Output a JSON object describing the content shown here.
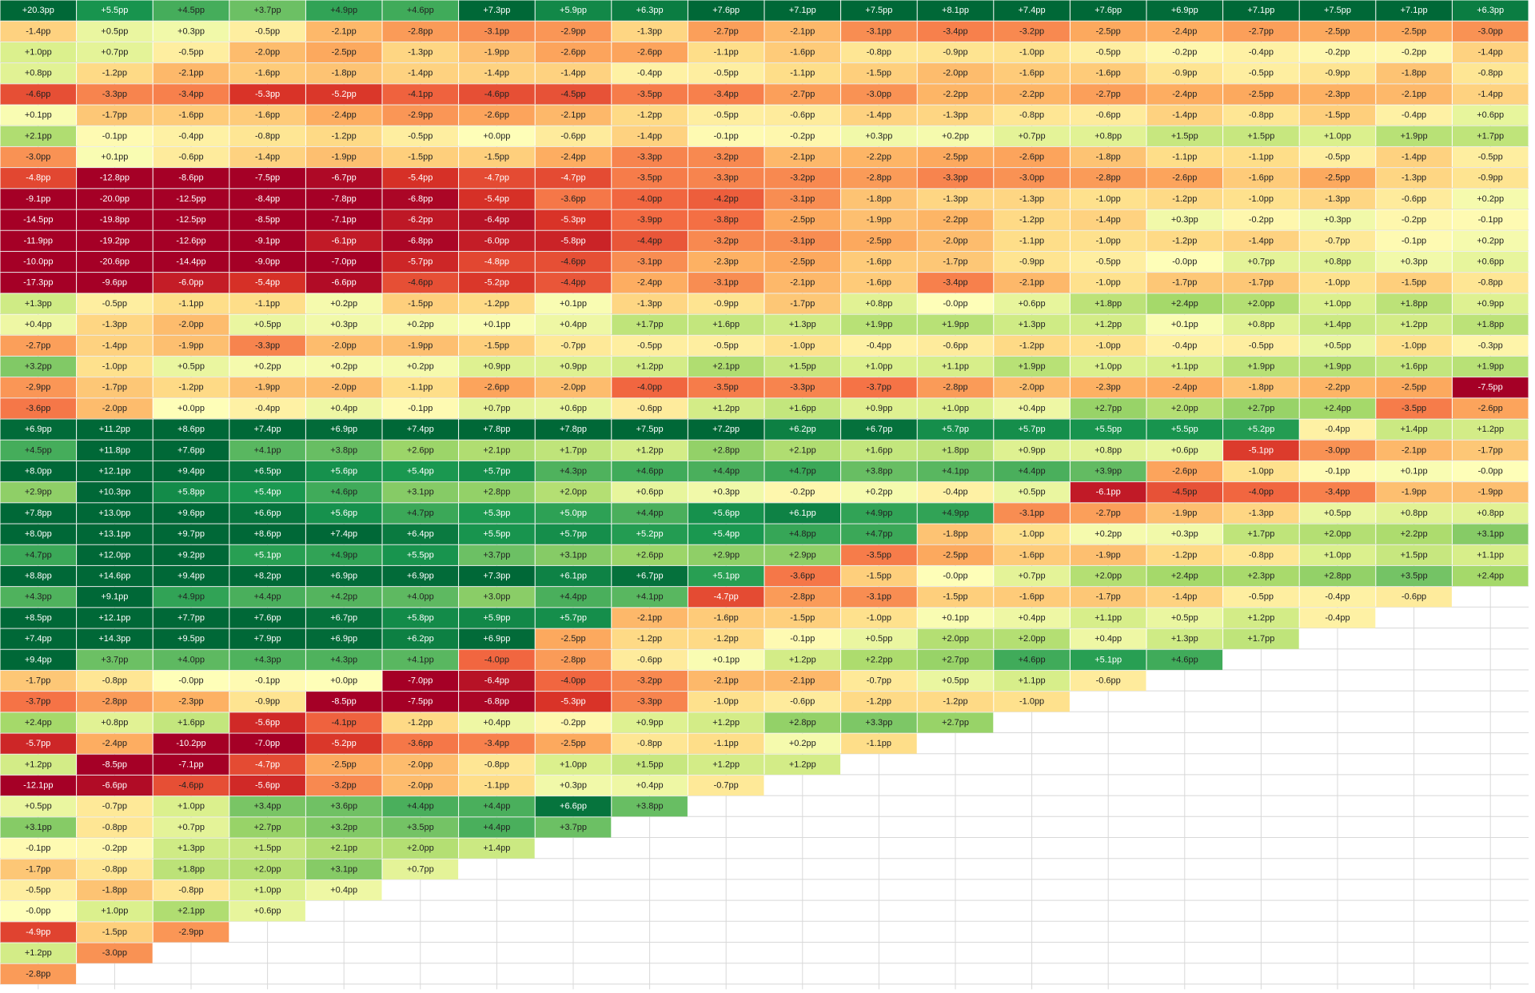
{
  "chart_data": {
    "type": "heatmap",
    "unit": "pp",
    "rows": [
      [
        "+20.3pp",
        "+5.5pp",
        "+4.5pp",
        "+3.7pp",
        "+4.9pp",
        "+4.6pp",
        "+7.3pp",
        "+5.9pp",
        "+6.3pp",
        "+7.6pp",
        "+7.1pp",
        "+7.5pp",
        "+8.1pp",
        "+7.4pp",
        "+7.6pp",
        "+6.9pp",
        "+7.1pp",
        "+7.5pp",
        "+7.1pp",
        "+6.3pp"
      ],
      [
        "-1.4pp",
        "+0.5pp",
        "+0.3pp",
        "-0.5pp",
        "-2.1pp",
        "-2.8pp",
        "-3.1pp",
        "-2.9pp",
        "-1.3pp",
        "-2.7pp",
        "-2.1pp",
        "-3.1pp",
        "-3.4pp",
        "-3.2pp",
        "-2.5pp",
        "-2.4pp",
        "-2.7pp",
        "-2.5pp",
        "-2.5pp",
        "-3.0pp"
      ],
      [
        "+1.0pp",
        "+0.7pp",
        "-0.5pp",
        "-2.0pp",
        "-2.5pp",
        "-1.3pp",
        "-1.9pp",
        "-2.6pp",
        "-2.6pp",
        "-1.1pp",
        "-1.6pp",
        "-0.8pp",
        "-0.9pp",
        "-1.0pp",
        "-0.5pp",
        "-0.2pp",
        "-0.4pp",
        "-0.2pp",
        "-0.2pp",
        "-1.4pp"
      ],
      [
        "+0.8pp",
        "-1.2pp",
        "-2.1pp",
        "-1.6pp",
        "-1.8pp",
        "-1.4pp",
        "-1.4pp",
        "-1.4pp",
        "-0.4pp",
        "-0.5pp",
        "-1.1pp",
        "-1.5pp",
        "-2.0pp",
        "-1.6pp",
        "-1.6pp",
        "-0.9pp",
        "-0.5pp",
        "-0.9pp",
        "-1.8pp",
        "-0.8pp"
      ],
      [
        "-4.6pp",
        "-3.3pp",
        "-3.4pp",
        "-5.3pp",
        "-5.2pp",
        "-4.1pp",
        "-4.6pp",
        "-4.5pp",
        "-3.5pp",
        "-3.4pp",
        "-2.7pp",
        "-3.0pp",
        "-2.2pp",
        "-2.2pp",
        "-2.7pp",
        "-2.4pp",
        "-2.5pp",
        "-2.3pp",
        "-2.1pp",
        "-1.4pp"
      ],
      [
        "+0.1pp",
        "-1.7pp",
        "-1.6pp",
        "-1.6pp",
        "-2.4pp",
        "-2.9pp",
        "-2.6pp",
        "-2.1pp",
        "-1.2pp",
        "-0.5pp",
        "-0.6pp",
        "-1.4pp",
        "-1.3pp",
        "-0.8pp",
        "-0.6pp",
        "-1.4pp",
        "-0.8pp",
        "-1.5pp",
        "-0.4pp",
        "+0.6pp"
      ],
      [
        "+2.1pp",
        "-0.1pp",
        "-0.4pp",
        "-0.8pp",
        "-1.2pp",
        "-0.5pp",
        "+0.0pp",
        "-0.6pp",
        "-1.4pp",
        "-0.1pp",
        "-0.2pp",
        "+0.3pp",
        "+0.2pp",
        "+0.7pp",
        "+0.8pp",
        "+1.5pp",
        "+1.5pp",
        "+1.0pp",
        "+1.9pp",
        "+1.7pp"
      ],
      [
        "-3.0pp",
        "+0.1pp",
        "-0.6pp",
        "-1.4pp",
        "-1.9pp",
        "-1.5pp",
        "-1.5pp",
        "-2.4pp",
        "-3.3pp",
        "-3.2pp",
        "-2.1pp",
        "-2.2pp",
        "-2.5pp",
        "-2.6pp",
        "-1.8pp",
        "-1.1pp",
        "-1.1pp",
        "-0.5pp",
        "-1.4pp",
        "-0.5pp"
      ],
      [
        "-4.8pp",
        "-12.8pp",
        "-8.6pp",
        "-7.5pp",
        "-6.7pp",
        "-5.4pp",
        "-4.7pp",
        "-4.7pp",
        "-3.5pp",
        "-3.3pp",
        "-3.2pp",
        "-2.8pp",
        "-3.3pp",
        "-3.0pp",
        "-2.8pp",
        "-2.6pp",
        "-1.6pp",
        "-2.5pp",
        "-1.3pp",
        "-0.9pp"
      ],
      [
        "-9.1pp",
        "-20.0pp",
        "-12.5pp",
        "-8.4pp",
        "-7.8pp",
        "-6.8pp",
        "-5.4pp",
        "-3.6pp",
        "-4.0pp",
        "-4.2pp",
        "-3.1pp",
        "-1.8pp",
        "-1.3pp",
        "-1.3pp",
        "-1.0pp",
        "-1.2pp",
        "-1.0pp",
        "-1.3pp",
        "-0.6pp",
        "+0.2pp"
      ],
      [
        "-14.5pp",
        "-19.8pp",
        "-12.5pp",
        "-8.5pp",
        "-7.1pp",
        "-6.2pp",
        "-6.4pp",
        "-5.3pp",
        "-3.9pp",
        "-3.8pp",
        "-2.5pp",
        "-1.9pp",
        "-2.2pp",
        "-1.2pp",
        "-1.4pp",
        "+0.3pp",
        "-0.2pp",
        "+0.3pp",
        "-0.2pp",
        "-0.1pp"
      ],
      [
        "-11.9pp",
        "-19.2pp",
        "-12.6pp",
        "-9.1pp",
        "-6.1pp",
        "-6.8pp",
        "-6.0pp",
        "-5.8pp",
        "-4.4pp",
        "-3.2pp",
        "-3.1pp",
        "-2.5pp",
        "-2.0pp",
        "-1.1pp",
        "-1.0pp",
        "-1.2pp",
        "-1.4pp",
        "-0.7pp",
        "-0.1pp",
        "+0.2pp"
      ],
      [
        "-10.0pp",
        "-20.6pp",
        "-14.4pp",
        "-9.0pp",
        "-7.0pp",
        "-5.7pp",
        "-4.8pp",
        "-4.6pp",
        "-3.1pp",
        "-2.3pp",
        "-2.5pp",
        "-1.6pp",
        "-1.7pp",
        "-0.9pp",
        "-0.5pp",
        "-0.0pp",
        "+0.7pp",
        "+0.8pp",
        "+0.3pp",
        "+0.6pp"
      ],
      [
        "-17.3pp",
        "-9.6pp",
        "-6.0pp",
        "-5.4pp",
        "-6.6pp",
        "-4.6pp",
        "-5.2pp",
        "-4.4pp",
        "-2.4pp",
        "-3.1pp",
        "-2.1pp",
        "-1.6pp",
        "-3.4pp",
        "-2.1pp",
        "-1.0pp",
        "-1.7pp",
        "-1.7pp",
        "-1.0pp",
        "-1.5pp",
        "-0.8pp"
      ],
      [
        "+1.3pp",
        "-0.5pp",
        "-1.1pp",
        "-1.1pp",
        "+0.2pp",
        "-1.5pp",
        "-1.2pp",
        "+0.1pp",
        "-1.3pp",
        "-0.9pp",
        "-1.7pp",
        "+0.8pp",
        "-0.0pp",
        "+0.6pp",
        "+1.8pp",
        "+2.4pp",
        "+2.0pp",
        "+1.0pp",
        "+1.8pp",
        "+0.9pp"
      ],
      [
        "+0.4pp",
        "-1.3pp",
        "-2.0pp",
        "+0.5pp",
        "+0.3pp",
        "+0.2pp",
        "+0.1pp",
        "+0.4pp",
        "+1.7pp",
        "+1.6pp",
        "+1.3pp",
        "+1.9pp",
        "+1.9pp",
        "+1.3pp",
        "+1.2pp",
        "+0.1pp",
        "+0.8pp",
        "+1.4pp",
        "+1.2pp",
        "+1.8pp"
      ],
      [
        "-2.7pp",
        "-1.4pp",
        "-1.9pp",
        "-3.3pp",
        "-2.0pp",
        "-1.9pp",
        "-1.5pp",
        "-0.7pp",
        "-0.5pp",
        "-0.5pp",
        "-1.0pp",
        "-0.4pp",
        "-0.6pp",
        "-1.2pp",
        "-1.0pp",
        "-0.4pp",
        "-0.5pp",
        "+0.5pp",
        "-1.0pp",
        "-0.3pp"
      ],
      [
        "+3.2pp",
        "-1.0pp",
        "+0.5pp",
        "+0.2pp",
        "+0.2pp",
        "+0.2pp",
        "+0.9pp",
        "+0.9pp",
        "+1.2pp",
        "+2.1pp",
        "+1.5pp",
        "+1.0pp",
        "+1.1pp",
        "+1.9pp",
        "+1.0pp",
        "+1.1pp",
        "+1.9pp",
        "+1.9pp",
        "+1.6pp",
        "+1.9pp"
      ],
      [
        "-2.9pp",
        "-1.7pp",
        "-1.2pp",
        "-1.9pp",
        "-2.0pp",
        "-1.1pp",
        "-2.6pp",
        "-2.0pp",
        "-4.0pp",
        "-3.5pp",
        "-3.3pp",
        "-3.7pp",
        "-2.8pp",
        "-2.0pp",
        "-2.3pp",
        "-2.4pp",
        "-1.8pp",
        "-2.2pp",
        "-2.5pp",
        "-7.5pp"
      ],
      [
        "-3.6pp",
        "-2.0pp",
        "+0.0pp",
        "-0.4pp",
        "+0.4pp",
        "-0.1pp",
        "+0.7pp",
        "+0.6pp",
        "-0.6pp",
        "+1.2pp",
        "+1.6pp",
        "+0.9pp",
        "+1.0pp",
        "+0.4pp",
        "+2.7pp",
        "+2.0pp",
        "+2.7pp",
        "+2.4pp",
        "-3.5pp",
        "-2.6pp"
      ],
      [
        "+6.9pp",
        "+11.2pp",
        "+8.6pp",
        "+7.4pp",
        "+6.9pp",
        "+7.4pp",
        "+7.8pp",
        "+7.8pp",
        "+7.5pp",
        "+7.2pp",
        "+6.2pp",
        "+6.7pp",
        "+5.7pp",
        "+5.7pp",
        "+5.5pp",
        "+5.5pp",
        "+5.2pp",
        "-0.4pp",
        "+1.4pp",
        "+1.2pp"
      ],
      [
        "+4.5pp",
        "+11.8pp",
        "+7.6pp",
        "+4.1pp",
        "+3.8pp",
        "+2.6pp",
        "+2.1pp",
        "+1.7pp",
        "+1.2pp",
        "+2.8pp",
        "+2.1pp",
        "+1.6pp",
        "+1.8pp",
        "+0.9pp",
        "+0.8pp",
        "+0.6pp",
        "-5.1pp",
        "-3.0pp",
        "-2.1pp",
        "-1.7pp"
      ],
      [
        "+8.0pp",
        "+12.1pp",
        "+9.4pp",
        "+6.5pp",
        "+5.6pp",
        "+5.4pp",
        "+5.7pp",
        "+4.3pp",
        "+4.6pp",
        "+4.4pp",
        "+4.7pp",
        "+3.8pp",
        "+4.1pp",
        "+4.4pp",
        "+3.9pp",
        "-2.6pp",
        "-1.0pp",
        "-0.1pp",
        "+0.1pp",
        "-0.0pp"
      ],
      [
        "+2.9pp",
        "+10.3pp",
        "+5.8pp",
        "+5.4pp",
        "+4.6pp",
        "+3.1pp",
        "+2.8pp",
        "+2.0pp",
        "+0.6pp",
        "+0.3pp",
        "-0.2pp",
        "+0.2pp",
        "-0.4pp",
        "+0.5pp",
        "-6.1pp",
        "-4.5pp",
        "-4.0pp",
        "-3.4pp",
        "-1.9pp",
        "-1.9pp"
      ],
      [
        "+7.8pp",
        "+13.0pp",
        "+9.6pp",
        "+6.6pp",
        "+5.6pp",
        "+4.7pp",
        "+5.3pp",
        "+5.0pp",
        "+4.4pp",
        "+5.6pp",
        "+6.1pp",
        "+4.9pp",
        "+4.9pp",
        "-3.1pp",
        "-2.7pp",
        "-1.9pp",
        "-1.3pp",
        "+0.5pp",
        "+0.8pp",
        "+0.8pp"
      ],
      [
        "+8.0pp",
        "+13.1pp",
        "+9.7pp",
        "+8.6pp",
        "+7.4pp",
        "+6.4pp",
        "+5.5pp",
        "+5.7pp",
        "+5.2pp",
        "+5.4pp",
        "+4.8pp",
        "+4.7pp",
        "-1.8pp",
        "-1.0pp",
        "+0.2pp",
        "+0.3pp",
        "+1.7pp",
        "+2.0pp",
        "+2.2pp",
        "+3.1pp"
      ],
      [
        "+4.7pp",
        "+12.0pp",
        "+9.2pp",
        "+5.1pp",
        "+4.9pp",
        "+5.5pp",
        "+3.7pp",
        "+3.1pp",
        "+2.6pp",
        "+2.9pp",
        "+2.9pp",
        "-3.5pp",
        "-2.5pp",
        "-1.6pp",
        "-1.9pp",
        "-1.2pp",
        "-0.8pp",
        "+1.0pp",
        "+1.5pp",
        "+1.1pp"
      ],
      [
        "+8.8pp",
        "+14.6pp",
        "+9.4pp",
        "+8.2pp",
        "+6.9pp",
        "+6.9pp",
        "+7.3pp",
        "+6.1pp",
        "+6.7pp",
        "+5.1pp",
        "-3.6pp",
        "-1.5pp",
        "-0.0pp",
        "+0.7pp",
        "+2.0pp",
        "+2.4pp",
        "+2.3pp",
        "+2.8pp",
        "+3.5pp",
        "+2.4pp"
      ],
      [
        "+4.3pp",
        "+9.1pp",
        "+4.9pp",
        "+4.4pp",
        "+4.2pp",
        "+4.0pp",
        "+3.0pp",
        "+4.4pp",
        "+4.1pp",
        "-4.7pp",
        "-2.8pp",
        "-3.1pp",
        "-1.5pp",
        "-1.6pp",
        "-1.7pp",
        "-1.4pp",
        "-0.5pp",
        "-0.4pp",
        "-0.6pp"
      ],
      [
        "+8.5pp",
        "+12.1pp",
        "+7.7pp",
        "+7.6pp",
        "+6.7pp",
        "+5.8pp",
        "+5.9pp",
        "+5.7pp",
        "-2.1pp",
        "-1.6pp",
        "-1.5pp",
        "-1.0pp",
        "+0.1pp",
        "+0.4pp",
        "+1.1pp",
        "+0.5pp",
        "+1.2pp",
        "-0.4pp"
      ],
      [
        "+7.4pp",
        "+14.3pp",
        "+9.5pp",
        "+7.9pp",
        "+6.9pp",
        "+6.2pp",
        "+6.9pp",
        "-2.5pp",
        "-1.2pp",
        "-1.2pp",
        "-0.1pp",
        "+0.5pp",
        "+2.0pp",
        "+2.0pp",
        "+0.4pp",
        "+1.3pp",
        "+1.7pp"
      ],
      [
        "+9.4pp",
        "+3.7pp",
        "+4.0pp",
        "+4.3pp",
        "+4.3pp",
        "+4.1pp",
        "-4.0pp",
        "-2.8pp",
        "-0.6pp",
        "+0.1pp",
        "+1.2pp",
        "+2.2pp",
        "+2.7pp",
        "+4.6pp",
        "+5.1pp",
        "+4.6pp"
      ],
      [
        "-1.7pp",
        "-0.8pp",
        "-0.0pp",
        "-0.1pp",
        "+0.0pp",
        "-7.0pp",
        "-6.4pp",
        "-4.0pp",
        "-3.2pp",
        "-2.1pp",
        "-2.1pp",
        "-0.7pp",
        "+0.5pp",
        "+1.1pp",
        "-0.6pp"
      ],
      [
        "-3.7pp",
        "-2.8pp",
        "-2.3pp",
        "-0.9pp",
        "-8.5pp",
        "-7.5pp",
        "-6.8pp",
        "-5.3pp",
        "-3.3pp",
        "-1.0pp",
        "-0.6pp",
        "-1.2pp",
        "-1.2pp",
        "-1.0pp"
      ],
      [
        "+2.4pp",
        "+0.8pp",
        "+1.6pp",
        "-5.6pp",
        "-4.1pp",
        "-1.2pp",
        "+0.4pp",
        "-0.2pp",
        "+0.9pp",
        "+1.2pp",
        "+2.8pp",
        "+3.3pp",
        "+2.7pp"
      ],
      [
        "-5.7pp",
        "-2.4pp",
        "-10.2pp",
        "-7.0pp",
        "-5.2pp",
        "-3.6pp",
        "-3.4pp",
        "-2.5pp",
        "-0.8pp",
        "-1.1pp",
        "+0.2pp",
        "-1.1pp"
      ],
      [
        "+1.2pp",
        "-8.5pp",
        "-7.1pp",
        "-4.7pp",
        "-2.5pp",
        "-2.0pp",
        "-0.8pp",
        "+1.0pp",
        "+1.5pp",
        "+1.2pp",
        "+1.2pp"
      ],
      [
        "-12.1pp",
        "-6.6pp",
        "-4.6pp",
        "-5.6pp",
        "-3.2pp",
        "-2.0pp",
        "-1.1pp",
        "+0.3pp",
        "+0.4pp",
        "-0.7pp"
      ],
      [
        "+0.5pp",
        "-0.7pp",
        "+1.0pp",
        "+3.4pp",
        "+3.6pp",
        "+4.4pp",
        "+4.4pp",
        "+6.6pp",
        "+3.8pp"
      ],
      [
        "+3.1pp",
        "-0.8pp",
        "+0.7pp",
        "+2.7pp",
        "+3.2pp",
        "+3.5pp",
        "+4.4pp",
        "+3.7pp"
      ],
      [
        "-0.1pp",
        "-0.2pp",
        "+1.3pp",
        "+1.5pp",
        "+2.1pp",
        "+2.0pp",
        "+1.4pp"
      ],
      [
        "-1.7pp",
        "-0.8pp",
        "+1.8pp",
        "+2.0pp",
        "+3.1pp",
        "+0.7pp"
      ],
      [
        "-0.5pp",
        "-1.8pp",
        "-0.8pp",
        "+1.0pp",
        "+0.4pp"
      ],
      [
        "-0.0pp",
        "+1.0pp",
        "+2.1pp",
        "+0.6pp"
      ],
      [
        "-4.9pp",
        "-1.5pp",
        "-2.9pp"
      ],
      [
        "+1.2pp",
        "-3.0pp"
      ],
      [
        "-2.8pp"
      ]
    ],
    "color_scale": {
      "negative": [
        "#fefeb8",
        "#fee08b",
        "#fdae61",
        "#f46d43",
        "#d73027",
        "#a50026"
      ],
      "positive": [
        "#fefeb8",
        "#d9ef8b",
        "#a6d96a",
        "#66bd63",
        "#1a9850",
        "#006837"
      ]
    },
    "grid": true,
    "grid_color": "#d8d8d8"
  }
}
